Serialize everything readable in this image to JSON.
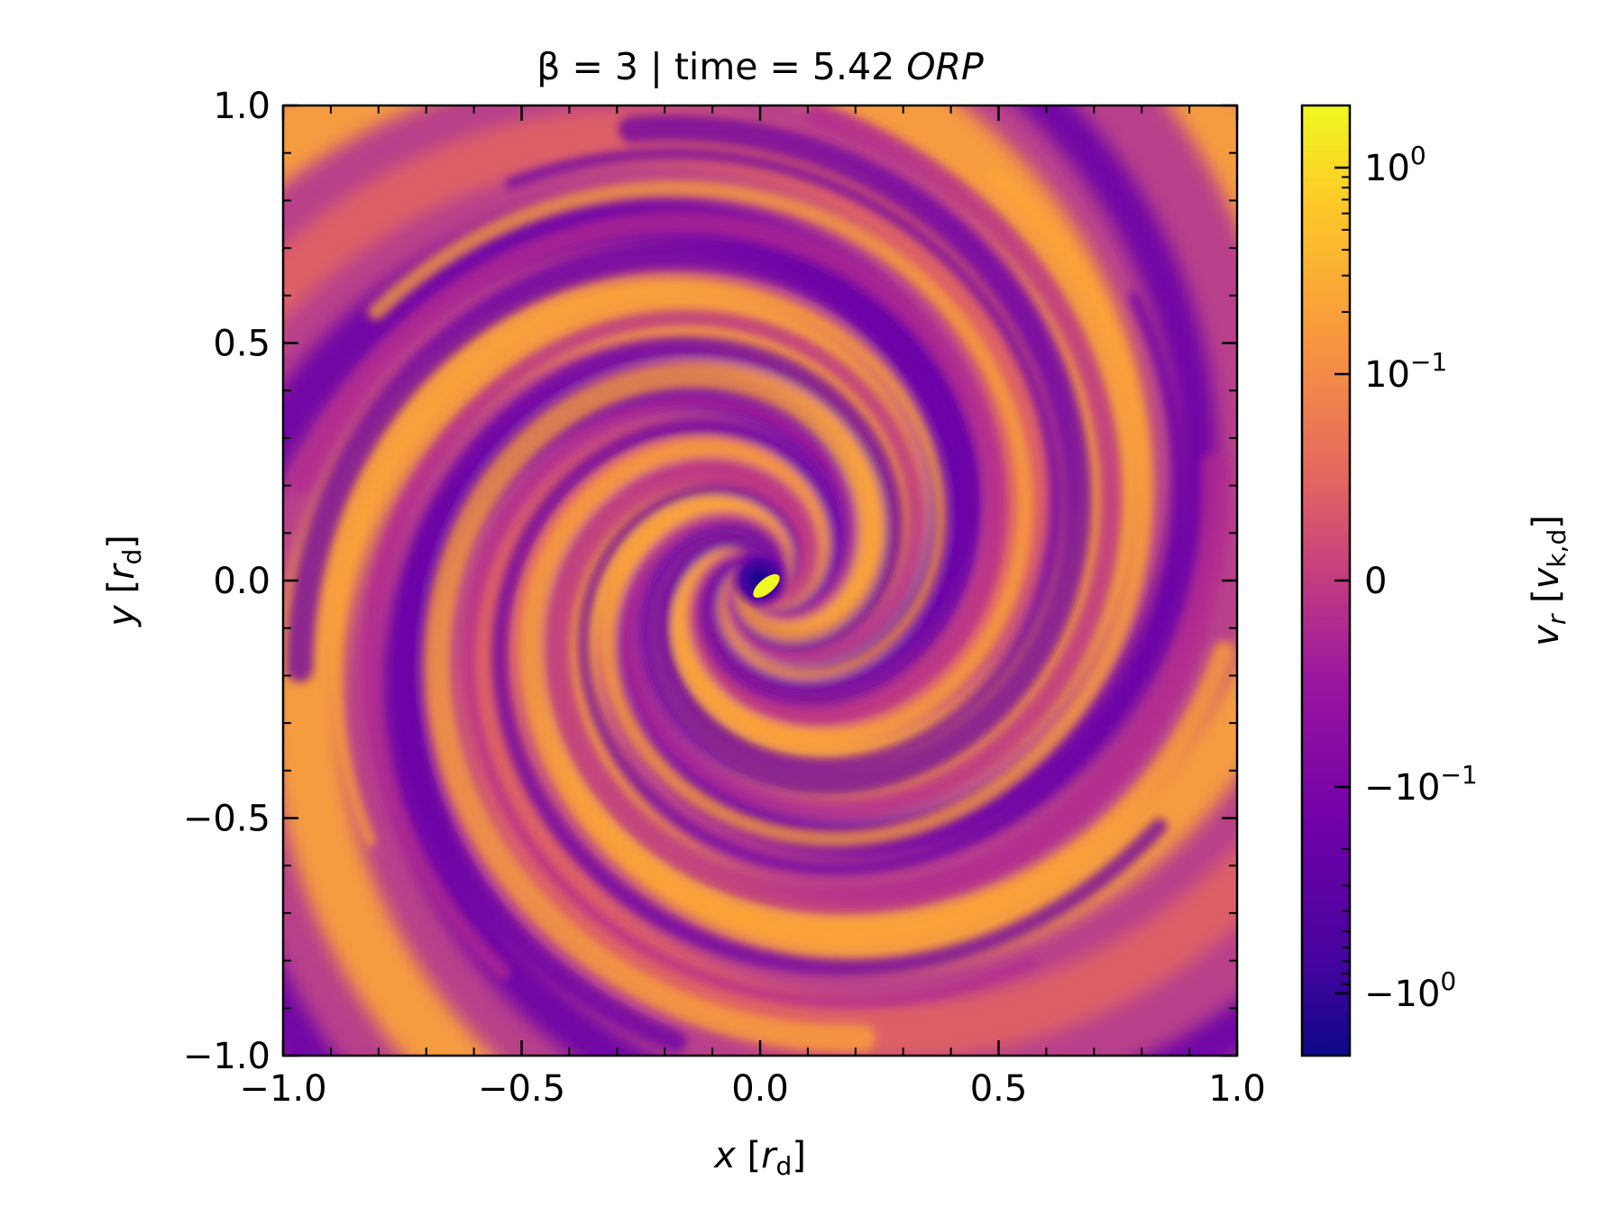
{
  "chart_data": {
    "type": "heatmap",
    "title": {
      "prefix": "β = 3 | time = 5.42 ",
      "suffix": "ORP"
    },
    "xlabel": {
      "var": "x",
      "open": " [",
      "sym": "r",
      "sub": "d",
      "close": "]"
    },
    "ylabel": {
      "var": "y",
      "open": " [",
      "sym": "r",
      "sub": "d",
      "close": "]"
    },
    "xlim": [
      -1.0,
      1.0
    ],
    "ylim": [
      -1.0,
      1.0
    ],
    "xticks": [
      {
        "value": -1.0,
        "label": "−1.0"
      },
      {
        "value": -0.5,
        "label": "−0.5"
      },
      {
        "value": 0.0,
        "label": "0.0"
      },
      {
        "value": 0.5,
        "label": "0.5"
      },
      {
        "value": 1.0,
        "label": "1.0"
      }
    ],
    "yticks": [
      {
        "value": -1.0,
        "label": "−1.0"
      },
      {
        "value": -0.5,
        "label": "−0.5"
      },
      {
        "value": 0.0,
        "label": "0.0"
      },
      {
        "value": 0.5,
        "label": "0.5"
      },
      {
        "value": 1.0,
        "label": "1.0"
      }
    ],
    "minor_tick_step": 0.1,
    "grid": false,
    "field": "radial velocity map, spiral structure around center (0, 0)",
    "colormap": "plasma",
    "colormap_stops": [
      "#0d0887",
      "#6a00a8",
      "#b12a90",
      "#e16462",
      "#fca636",
      "#f0f921"
    ],
    "colorbar": {
      "scale": "symlog",
      "linthresh": 0.1,
      "range": [
        -2.0,
        2.0
      ],
      "label": {
        "var": "v",
        "varsub": "r",
        "open": " [",
        "sym": "v",
        "sub": "k,d",
        "close": "]"
      },
      "ticks": [
        {
          "value": 1,
          "base": "10",
          "exp": "0"
        },
        {
          "value": 0.1,
          "base": "10",
          "exp": "−1"
        },
        {
          "value": 0,
          "base": "0",
          "exp": ""
        },
        {
          "value": -0.1,
          "base": "−10",
          "exp": "−1"
        },
        {
          "value": -1,
          "base": "−10",
          "exp": "0"
        }
      ]
    }
  }
}
